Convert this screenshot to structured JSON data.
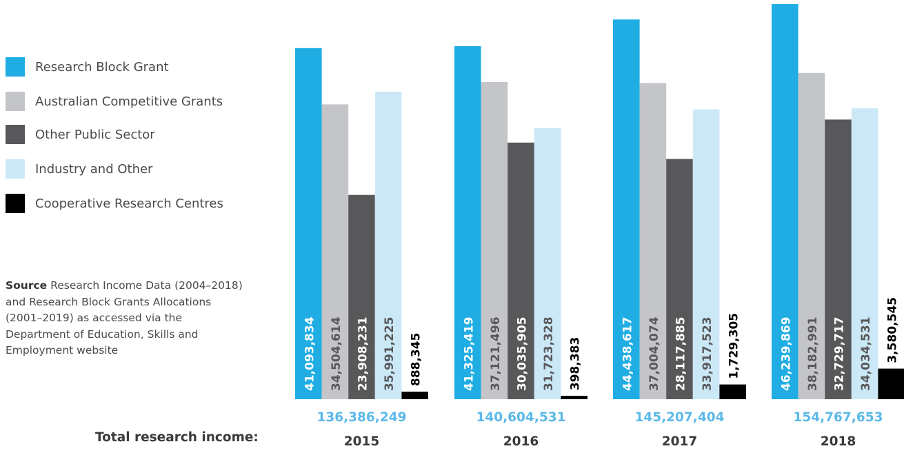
{
  "legend": {
    "items": [
      {
        "label": "Research Block Grant",
        "color": "#1fade3"
      },
      {
        "label": "Australian Competitive Grants",
        "color": "#c4c5c8"
      },
      {
        "label": "Other Public Sector",
        "color": "#58585a"
      },
      {
        "label": "Industry and Other",
        "color": "#cbe8f7"
      },
      {
        "label": "Cooperative Research Centres",
        "color": "#000000"
      }
    ]
  },
  "source": {
    "bold": "Source",
    "text": "Research Income Data (2004–2018) and Research Block Grants Allocations (2001–2019) as accessed via the Department of Education, Skills and Employment website"
  },
  "totals_caption": "Total research income:",
  "chart_data": {
    "type": "bar",
    "categories": [
      "2015",
      "2016",
      "2017",
      "2018"
    ],
    "series": [
      {
        "name": "Research Block Grant",
        "color": "#1fade3",
        "values": [
          41093834,
          41325419,
          44438617,
          46239869
        ],
        "labels": [
          "41,093,834",
          "41,325,419",
          "44,438,617",
          "46,239,869"
        ]
      },
      {
        "name": "Australian Competitive Grants",
        "color": "#c4c5c8",
        "values": [
          34504614,
          37121496,
          37004074,
          38182991
        ],
        "labels": [
          "34,504,614",
          "37,121,496",
          "37,004,074",
          "38,182,991"
        ]
      },
      {
        "name": "Other Public Sector",
        "color": "#58585a",
        "values": [
          23908231,
          30035905,
          28117885,
          32729717
        ],
        "labels": [
          "23,908,231",
          "30,035,905",
          "28,117,885",
          "32,729,717"
        ]
      },
      {
        "name": "Industry and Other",
        "color": "#cbe8f7",
        "values": [
          35991225,
          31723328,
          33917523,
          34034531
        ],
        "labels": [
          "35,991,225",
          "31,723,328",
          "33,917,523",
          "34,034,531"
        ]
      },
      {
        "name": "Cooperative Research Centres",
        "color": "#000000",
        "values": [
          888345,
          398383,
          1729305,
          3580545
        ],
        "labels": [
          "888,345",
          "398,383",
          "1,729,305",
          "3,580,545"
        ]
      }
    ],
    "totals": [
      "136,386,249",
      "140,604,531",
      "145,207,404",
      "154,767,653"
    ],
    "ylim": [
      0,
      46239869
    ]
  }
}
